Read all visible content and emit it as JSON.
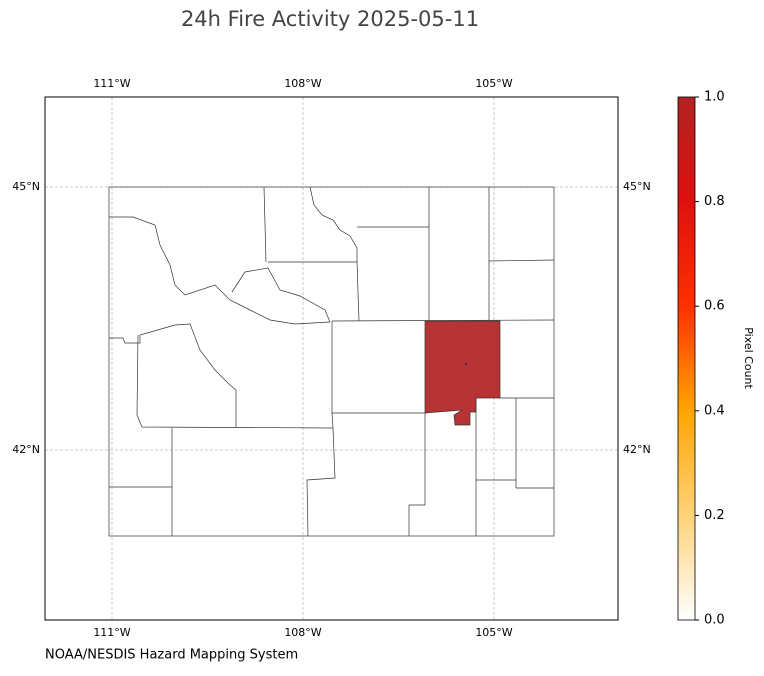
{
  "map": {
    "title": "24h Fire Activity 2025-05-11",
    "source": "NOAA/NESDIS Hazard Mapping System",
    "lon_ticks": [
      {
        "value": -111,
        "label": "111°W"
      },
      {
        "value": -108,
        "label": "108°W"
      },
      {
        "value": -105,
        "label": "105°W"
      }
    ],
    "lat_ticks": [
      {
        "value": 45,
        "label": "45°N"
      },
      {
        "value": 42,
        "label": "42°N"
      }
    ],
    "colorbar": {
      "label": "Pixel Count",
      "lim": [
        0,
        1
      ],
      "ticks": [
        {
          "value": 0,
          "label": "0.0"
        },
        {
          "value": 0.2,
          "label": "0.2"
        },
        {
          "value": 0.4,
          "label": "0.4"
        },
        {
          "value": 0.6,
          "label": "0.6"
        },
        {
          "value": 0.8,
          "label": "0.8"
        },
        {
          "value": 1,
          "label": "1.0"
        }
      ],
      "colors": [
        "#ffffff",
        "#ffd27a",
        "#ffa500",
        "#ff3000",
        "#e01010",
        "#b22222"
      ]
    },
    "shaded_value": 1
  }
}
